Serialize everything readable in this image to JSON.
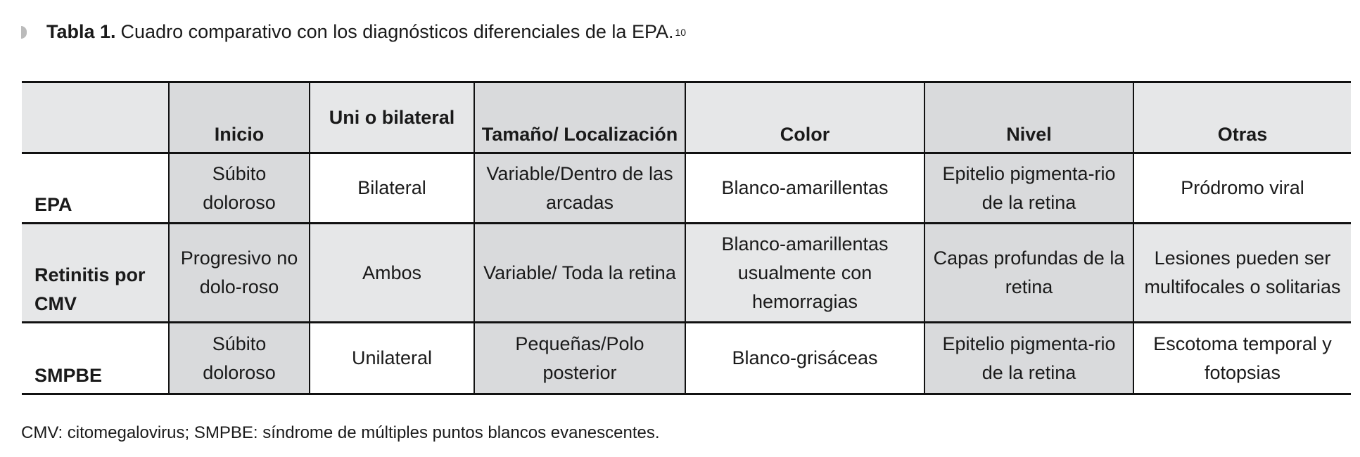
{
  "caption": {
    "label": "Tabla 1.",
    "text": "Cuadro comparativo con los diagnósticos diferenciales de la EPA.",
    "ref": "10"
  },
  "table": {
    "headers": [
      "",
      "Inicio",
      "Uni o bilateral",
      "Tamaño/ Localización",
      "Color",
      "Nivel",
      "Otras"
    ],
    "rows": [
      [
        "EPA",
        "Súbito doloroso",
        "Bilateral",
        "Variable/Dentro de las arcadas",
        "Blanco-amarillentas",
        "Epitelio pigmenta-rio de la retina",
        "Pródromo viral"
      ],
      [
        "Retinitis por CMV",
        "Progresivo no dolo-roso",
        "Ambos",
        "Variable/ Toda la retina",
        "Blanco-amarillentas usualmente con hemorragias",
        "Capas profundas de la retina",
        "Lesiones pueden ser multifocales o solitarias"
      ],
      [
        "SMPBE",
        "Súbito doloroso",
        "Unilateral",
        "Pequeñas/Polo posterior",
        "Blanco-grisáceas",
        "Epitelio pigmenta-rio de la retina",
        "Escotoma temporal y fotopsias"
      ]
    ]
  },
  "footnote": "CMV: citomegalovirus; SMPBE: síndrome de múltiples puntos blancos evanescentes.",
  "colors": {
    "header_bg": "#e6e7e8",
    "shaded_column": "#d9dadc",
    "border": "#111111"
  }
}
